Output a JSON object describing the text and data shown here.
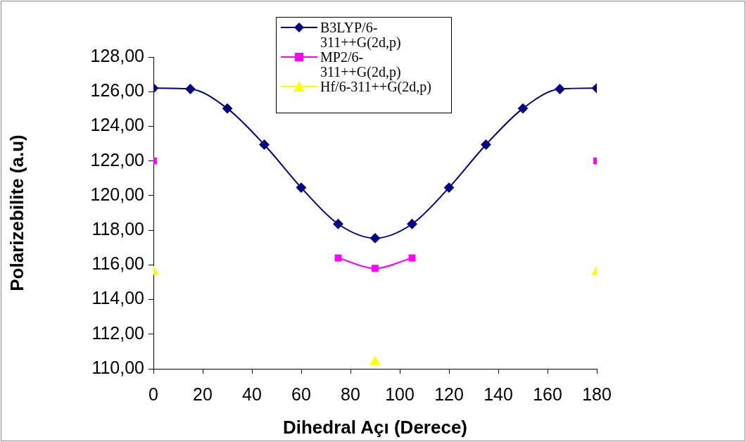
{
  "chart_data": {
    "type": "line",
    "xlabel": "Dihedral Açı (Derece)",
    "ylabel": "Polarizebilite (a.u)",
    "x": [
      0,
      15,
      30,
      45,
      60,
      75,
      90,
      105,
      120,
      135,
      150,
      165,
      180
    ],
    "series": [
      {
        "name": "B3LYP/6-311++G(2d,p)",
        "color": "#000080",
        "marker": "diamond",
        "values": [
          126.2,
          126.15,
          125.03,
          122.94,
          120.46,
          118.36,
          117.54,
          118.36,
          120.46,
          122.94,
          125.03,
          126.15,
          126.2
        ]
      },
      {
        "name": "MP2/6-311++G(2d,p)",
        "color": "#ff00ff",
        "marker": "square",
        "values": [
          122.0,
          null,
          null,
          null,
          null,
          116.4,
          115.8,
          116.4,
          null,
          null,
          null,
          null,
          122.0
        ]
      },
      {
        "name": "Hf/6-311++G(2d,p)",
        "color": "#ffff00",
        "marker": "triangle",
        "values": [
          115.6,
          null,
          null,
          null,
          null,
          null,
          110.4,
          null,
          null,
          null,
          null,
          null,
          115.6
        ]
      }
    ],
    "xlim": [
      0,
      180
    ],
    "xticks": [
      0,
      20,
      40,
      60,
      80,
      100,
      120,
      140,
      160,
      180
    ],
    "ylim": [
      110,
      128
    ],
    "yticks": [
      {
        "value": 110,
        "label": "110,00"
      },
      {
        "value": 112,
        "label": "112,00"
      },
      {
        "value": 114,
        "label": "114,00"
      },
      {
        "value": 116,
        "label": "116,00"
      },
      {
        "value": 118,
        "label": "118,00"
      },
      {
        "value": 120,
        "label": "120,00"
      },
      {
        "value": 122,
        "label": "122,00"
      },
      {
        "value": 124,
        "label": "124,00"
      },
      {
        "value": 126,
        "label": "126,00"
      },
      {
        "value": 128,
        "label": "128,00"
      }
    ],
    "grid": false,
    "legend": "top"
  }
}
